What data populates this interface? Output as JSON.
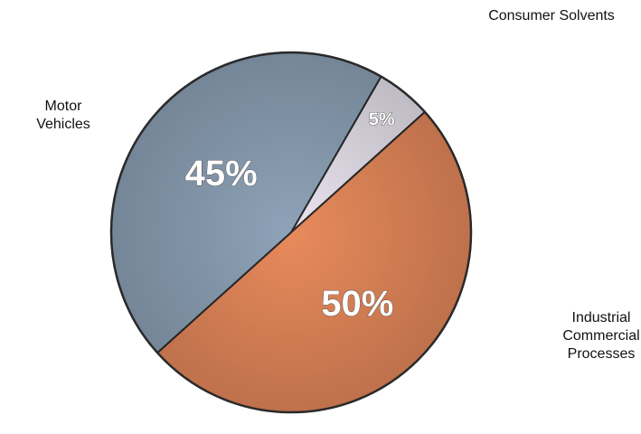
{
  "chart_data": {
    "type": "pie",
    "categories": [
      "Consumer Solvents",
      "Industrial Commercial Processes",
      "Motor Vehicles"
    ],
    "values": [
      5,
      50,
      45
    ],
    "value_labels": [
      "5%",
      "50%",
      "45%"
    ],
    "colors": [
      "#e9e4ef",
      "#e88a5c",
      "#8ea3b8"
    ],
    "start_angle": 30
  }
}
